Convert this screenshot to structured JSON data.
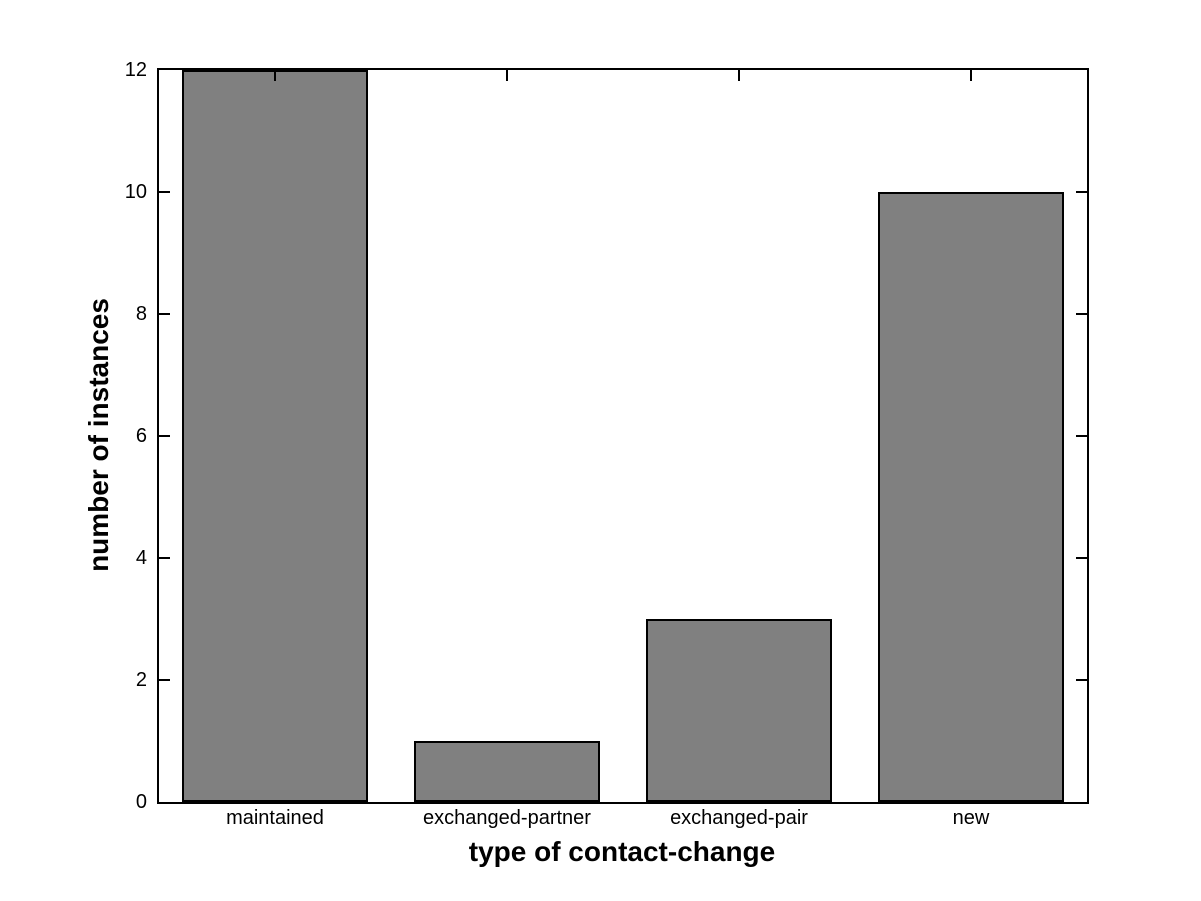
{
  "figure": {
    "background": "#ffffff"
  },
  "chart_data": {
    "type": "bar",
    "title": "",
    "categories": [
      "maintained",
      "exchanged-partner",
      "exchanged-pair",
      "new"
    ],
    "values": [
      12,
      1,
      3,
      10
    ],
    "xlabel": "type of contact-change",
    "ylabel": "number of instances",
    "ylim": [
      0,
      12
    ],
    "yticks": [
      0,
      2,
      4,
      6,
      8,
      10,
      12
    ],
    "ytick_labels": [
      "0",
      "2",
      "4",
      "6",
      "8",
      "10",
      "12"
    ],
    "bar_width_fraction": 0.8,
    "grid": false,
    "legend": null,
    "colors": {
      "bar_fill": "#808080",
      "bar_edge": "#000000",
      "axis": "#000000",
      "text": "#000000",
      "background": "#ffffff"
    },
    "tick_direction": "in"
  }
}
